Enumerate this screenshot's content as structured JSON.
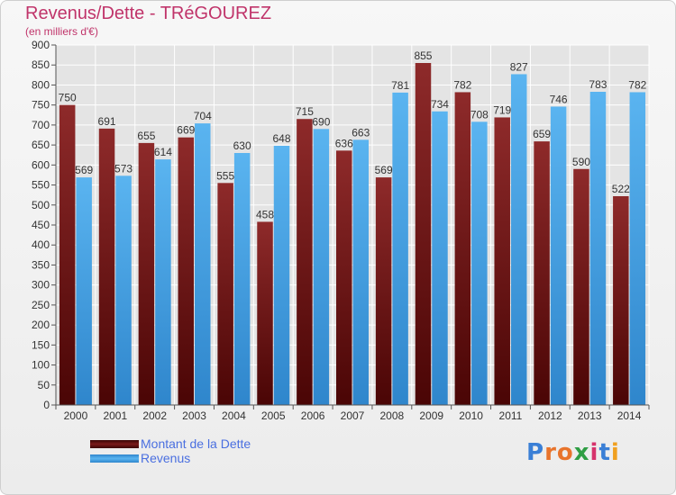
{
  "header": {
    "title": "Revenus/Dette - TRéGOUREZ",
    "subtitle": "(en milliers d'€)"
  },
  "chart_data": {
    "type": "bar",
    "categories": [
      "2000",
      "2001",
      "2002",
      "2003",
      "2004",
      "2005",
      "2006",
      "2007",
      "2008",
      "2009",
      "2010",
      "2011",
      "2012",
      "2013",
      "2014"
    ],
    "series": [
      {
        "name": "Montant de la Dette",
        "values": [
          750,
          691,
          655,
          669,
          555,
          458,
          715,
          636,
          569,
          855,
          782,
          719,
          659,
          590,
          522
        ],
        "color": "#7a1a1a"
      },
      {
        "name": "Revenus",
        "values": [
          569,
          573,
          614,
          704,
          630,
          648,
          690,
          663,
          781,
          734,
          708,
          827,
          746,
          783,
          782
        ],
        "color": "#4fa8e6"
      }
    ],
    "yticks": [
      0,
      50,
      100,
      150,
      200,
      250,
      300,
      350,
      400,
      450,
      500,
      550,
      600,
      650,
      700,
      750,
      800,
      850,
      900
    ],
    "ylim": [
      0,
      900
    ],
    "grid": true,
    "legend": "bottom-left"
  },
  "legend": {
    "items": [
      {
        "label": "Montant de la Dette",
        "color": "#7a1a1a"
      },
      {
        "label": "Revenus",
        "color": "#4fa8e6"
      }
    ]
  },
  "logo": {
    "text": "Proxiti"
  }
}
